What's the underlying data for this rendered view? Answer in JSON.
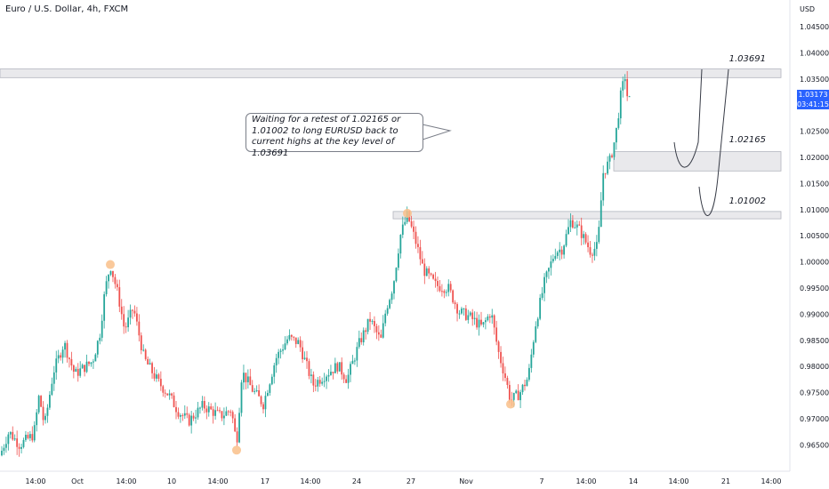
{
  "header": {
    "symbol_line": "Euro / U.S. Dollar, 4h, FXCM"
  },
  "price_axis": {
    "unit": "USD",
    "ticks": [
      "1.04500",
      "1.04000",
      "1.03500",
      "1.03000",
      "1.02500",
      "1.02000",
      "1.01500",
      "1.01000",
      "1.00500",
      "1.00000",
      "0.99500",
      "0.99000",
      "0.98500",
      "0.98000",
      "0.97500",
      "0.97000",
      "0.96500"
    ]
  },
  "current_price": {
    "value": "1.03173",
    "countdown": "03:41:15",
    "color": "#2962ff"
  },
  "time_axis": {
    "ticks": [
      "14:00",
      "Oct",
      "14:00",
      "10",
      "14:00",
      "17",
      "14:00",
      "24",
      "27",
      "Nov",
      "7",
      "14:00",
      "14",
      "14:00",
      "21",
      "14:00"
    ]
  },
  "note": {
    "text": "Waiting for a retest of 1.02165 or 1.01002 to long EURUSD back to current highs at the key level of 1.03691"
  },
  "levels": [
    {
      "label": "1.03691",
      "top": 1.03691,
      "bottom": 1.03525
    },
    {
      "label": "1.02165",
      "top": 1.0211,
      "bottom": 1.0174
    },
    {
      "label": "1.01002",
      "top": 1.00965,
      "bottom": 1.00825
    }
  ],
  "colors": {
    "up": "#26a69a",
    "down": "#ef5350",
    "zone": "#e9e9ec",
    "marker": "#f9c08a"
  },
  "chart_data": {
    "type": "candlestick",
    "title": "Euro / U.S. Dollar, 4h, FXCM",
    "ylabel": "USD",
    "ylim": [
      0.9622,
      1.048
    ],
    "x_ticks": [
      "14:00",
      "Oct",
      "14:00",
      "10",
      "14:00",
      "17",
      "14:00",
      "24",
      "27",
      "Nov",
      "7",
      "14:00",
      "14",
      "14:00",
      "21",
      "14:00"
    ],
    "price_path": [
      [
        0,
        0.963
      ],
      [
        10,
        0.9675
      ],
      [
        22,
        0.965
      ],
      [
        38,
        0.967
      ],
      [
        44,
        0.9745
      ],
      [
        50,
        0.9685
      ],
      [
        60,
        0.979
      ],
      [
        72,
        0.9845
      ],
      [
        84,
        0.9785
      ],
      [
        104,
        0.981
      ],
      [
        112,
        0.986
      ],
      [
        118,
        0.9945
      ],
      [
        124,
        0.9995
      ],
      [
        133,
        0.9935
      ],
      [
        140,
        0.987
      ],
      [
        150,
        0.9912
      ],
      [
        162,
        0.9815
      ],
      [
        178,
        0.977
      ],
      [
        190,
        0.9745
      ],
      [
        200,
        0.9715
      ],
      [
        212,
        0.9695
      ],
      [
        228,
        0.9725
      ],
      [
        248,
        0.9705
      ],
      [
        260,
        0.9718
      ],
      [
        266,
        0.9652
      ],
      [
        272,
        0.979
      ],
      [
        284,
        0.9755
      ],
      [
        296,
        0.9728
      ],
      [
        310,
        0.9815
      ],
      [
        324,
        0.9855
      ],
      [
        336,
        0.9845
      ],
      [
        352,
        0.9765
      ],
      [
        366,
        0.9785
      ],
      [
        380,
        0.9802
      ],
      [
        390,
        0.9775
      ],
      [
        404,
        0.9845
      ],
      [
        416,
        0.989
      ],
      [
        428,
        0.9848
      ],
      [
        434,
        0.991
      ],
      [
        442,
        0.9955
      ],
      [
        450,
        1.005
      ],
      [
        458,
        1.009
      ],
      [
        468,
        1.0035
      ],
      [
        476,
        0.9985
      ],
      [
        490,
        0.9955
      ],
      [
        504,
        0.995
      ],
      [
        516,
        0.9905
      ],
      [
        528,
        0.9895
      ],
      [
        542,
        0.9875
      ],
      [
        552,
        0.9905
      ],
      [
        560,
        0.983
      ],
      [
        568,
        0.978
      ],
      [
        574,
        0.9735
      ],
      [
        584,
        0.9748
      ],
      [
        594,
        0.978
      ],
      [
        602,
        0.988
      ],
      [
        612,
        0.996
      ],
      [
        624,
        1.002
      ],
      [
        632,
        1.0025
      ],
      [
        642,
        1.008
      ],
      [
        652,
        1.006
      ],
      [
        664,
        1.002
      ],
      [
        672,
        1.003
      ],
      [
        678,
        1.017
      ],
      [
        686,
        1.0195
      ],
      [
        692,
        1.024
      ],
      [
        698,
        1.032
      ],
      [
        704,
        1.0365
      ],
      [
        708,
        1.0317
      ]
    ],
    "annotations": [
      "1.03691",
      "1.02165",
      "1.01002"
    ]
  }
}
